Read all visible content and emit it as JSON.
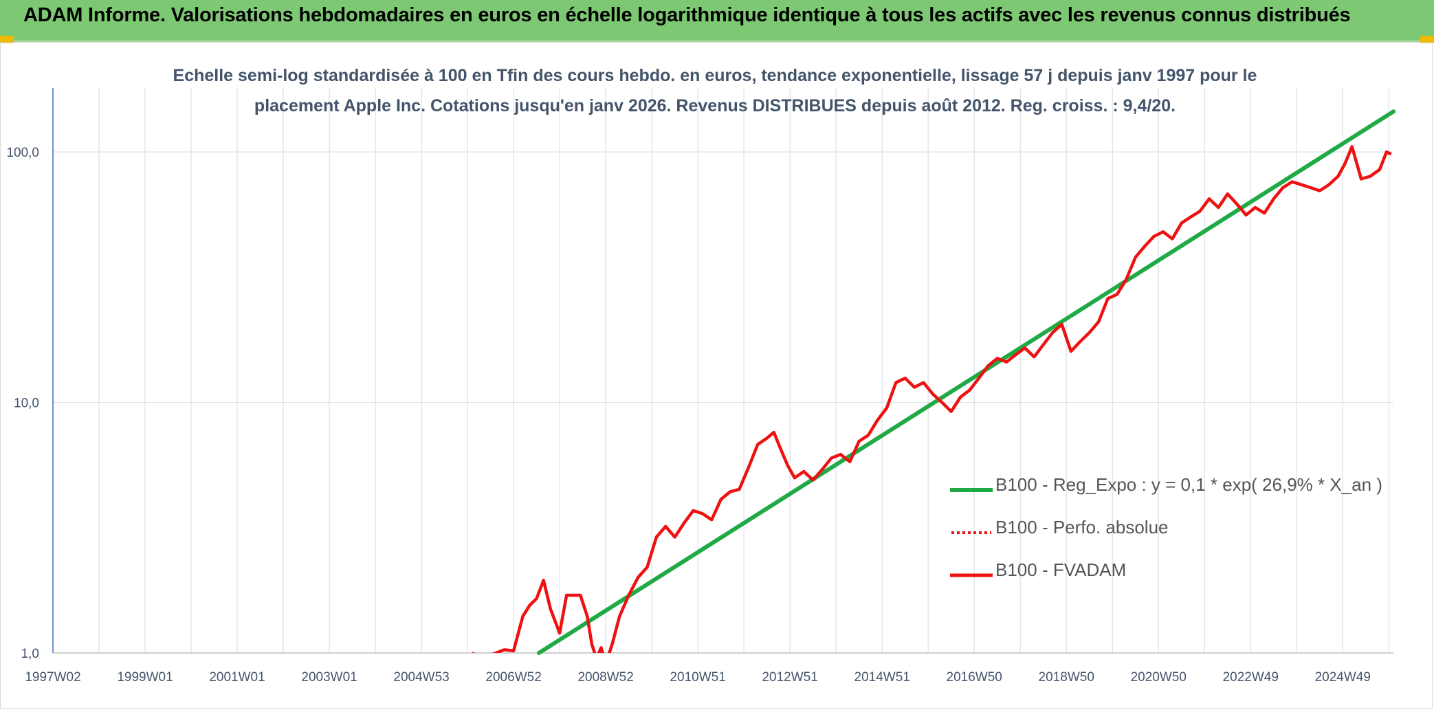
{
  "banner": {
    "title": "ADAM Informe. Valorisations hebdomadaires en euros en échelle logarithmique identique à tous les actifs avec les revenus connus distribués"
  },
  "colors": {
    "banner_bg": "#7dc873",
    "corner_accent": "#f2b800",
    "subtitle_text": "#44546a",
    "trend_line": "#1faa45",
    "fvadam_line": "#ee1111",
    "perfo_line": "#ee1111",
    "grid": "#dde3ea",
    "y_axis": "#4472c4"
  },
  "chart_data": {
    "type": "line",
    "title_lines": [
      "Echelle semi-log standardisée à 100 en Tfin des cours hebdo. en euros, tendance exponentielle, lissage 57 j depuis janv 1997 pour le",
      "placement Apple Inc. Cotations jusqu'en janv 2026. Revenus DISTRIBUES depuis août 2012. Reg. croiss. : 9,4/20."
    ],
    "y_scale": "log",
    "ylim": [
      1,
      180
    ],
    "xlim": [
      1997.0,
      2026.1
    ],
    "y_ticks": [
      {
        "value": 1,
        "label": "1,0"
      },
      {
        "value": 10,
        "label": "10,0"
      },
      {
        "value": 100,
        "label": "100,0"
      }
    ],
    "x_ticks": [
      {
        "value": 1997.0,
        "label": "1997W02"
      },
      {
        "value": 1999.0,
        "label": "1999W01"
      },
      {
        "value": 2001.0,
        "label": "2001W01"
      },
      {
        "value": 2003.0,
        "label": "2003W01"
      },
      {
        "value": 2005.0,
        "label": "2004W53"
      },
      {
        "value": 2007.0,
        "label": "2006W52"
      },
      {
        "value": 2009.0,
        "label": "2008W52"
      },
      {
        "value": 2011.0,
        "label": "2010W51"
      },
      {
        "value": 2013.0,
        "label": "2012W51"
      },
      {
        "value": 2015.0,
        "label": "2014W51"
      },
      {
        "value": 2017.0,
        "label": "2016W50"
      },
      {
        "value": 2019.0,
        "label": "2018W50"
      },
      {
        "value": 2021.0,
        "label": "2020W50"
      },
      {
        "value": 2023.0,
        "label": "2022W49"
      },
      {
        "value": 2025.0,
        "label": "2024W49"
      }
    ],
    "legend_position": "bottom-right",
    "series": [
      {
        "name": "B100 - Reg_Expo : y = 0,1 * exp( 26,9% *  X_an )",
        "style": "solid-thick",
        "color": "#1faa45",
        "x": [
          2007.55,
          2026.1
        ],
        "y": [
          1.0,
          145
        ]
      },
      {
        "name": "B100 - Perfo. absolue",
        "style": "dotted",
        "color": "#ee1111",
        "x": [],
        "y": []
      },
      {
        "name": "B100 - FVADAM",
        "style": "solid",
        "color": "#ee1111",
        "x": [
          2006.1,
          2006.2,
          2006.5,
          2006.8,
          2007.0,
          2007.2,
          2007.35,
          2007.5,
          2007.65,
          2007.8,
          2008.0,
          2008.15,
          2008.3,
          2008.45,
          2008.6,
          2008.7,
          2008.8,
          2008.9,
          2009.0,
          2009.15,
          2009.3,
          2009.5,
          2009.7,
          2009.9,
          2010.1,
          2010.3,
          2010.5,
          2010.7,
          2010.9,
          2011.1,
          2011.3,
          2011.5,
          2011.7,
          2011.9,
          2012.1,
          2012.3,
          2012.5,
          2012.65,
          2012.8,
          2012.95,
          2013.1,
          2013.3,
          2013.5,
          2013.7,
          2013.9,
          2014.1,
          2014.3,
          2014.5,
          2014.7,
          2014.9,
          2015.1,
          2015.3,
          2015.5,
          2015.7,
          2015.9,
          2016.1,
          2016.3,
          2016.5,
          2016.7,
          2016.9,
          2017.1,
          2017.3,
          2017.5,
          2017.7,
          2017.9,
          2018.1,
          2018.3,
          2018.5,
          2018.7,
          2018.9,
          2019.1,
          2019.3,
          2019.5,
          2019.7,
          2019.9,
          2020.1,
          2020.3,
          2020.5,
          2020.7,
          2020.9,
          2021.1,
          2021.3,
          2021.5,
          2021.7,
          2021.9,
          2022.1,
          2022.3,
          2022.5,
          2022.7,
          2022.9,
          2023.1,
          2023.3,
          2023.5,
          2023.7,
          2023.9,
          2024.1,
          2024.3,
          2024.5,
          2024.7,
          2024.9,
          2025.05,
          2025.2,
          2025.4,
          2025.6,
          2025.8,
          2025.95,
          2026.05
        ],
        "y": [
          1.0,
          0.97,
          0.98,
          1.03,
          1.02,
          1.4,
          1.55,
          1.65,
          1.95,
          1.5,
          1.2,
          1.7,
          1.7,
          1.7,
          1.4,
          1.08,
          0.95,
          1.05,
          0.9,
          1.1,
          1.4,
          1.7,
          2.0,
          2.2,
          2.9,
          3.2,
          2.9,
          3.3,
          3.7,
          3.6,
          3.4,
          4.1,
          4.4,
          4.5,
          5.5,
          6.8,
          7.2,
          7.6,
          6.5,
          5.6,
          5.0,
          5.3,
          4.9,
          5.4,
          6.0,
          6.2,
          5.8,
          7.0,
          7.4,
          8.5,
          9.5,
          12.0,
          12.5,
          11.5,
          12.0,
          10.8,
          10.0,
          9.2,
          10.5,
          11.2,
          12.5,
          14.0,
          15.0,
          14.5,
          15.5,
          16.5,
          15.2,
          17.0,
          19.0,
          20.5,
          16.0,
          17.5,
          19.0,
          21.0,
          26.0,
          27.0,
          31.0,
          38.0,
          42.0,
          46.0,
          48.0,
          45.0,
          52.0,
          55.0,
          58.0,
          65.0,
          60.0,
          68.0,
          62.0,
          56.0,
          60.0,
          57.0,
          65.0,
          72.0,
          76.0,
          74.0,
          72.0,
          70.0,
          74.0,
          80.0,
          90.0,
          105.0,
          78.0,
          80.0,
          85.0,
          100.0,
          98.0
        ]
      }
    ]
  }
}
